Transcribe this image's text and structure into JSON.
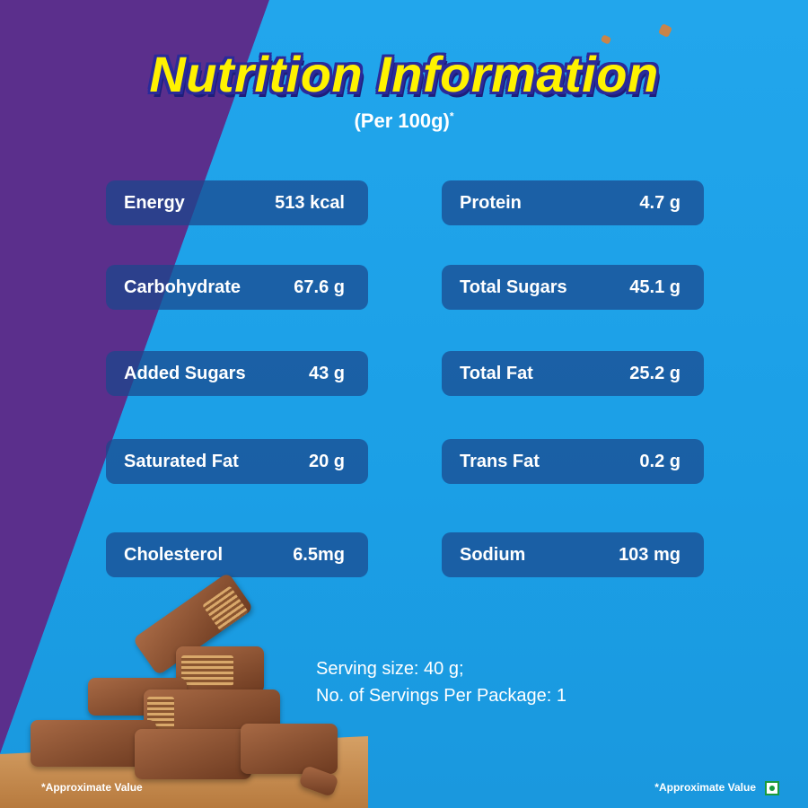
{
  "title": "Nutrition Information",
  "subtitle": "(Per 100g)",
  "subtitle_mark": "*",
  "nutrients_left": [
    {
      "name": "Energy",
      "value": "513 kcal"
    },
    {
      "name": "Carbohydrate",
      "value": "67.6 g"
    },
    {
      "name": "Added Sugars",
      "value": "43 g"
    },
    {
      "name": "Saturated Fat",
      "value": "20 g"
    },
    {
      "name": "Cholesterol",
      "value": "6.5mg"
    }
  ],
  "nutrients_right": [
    {
      "name": "Protein",
      "value": "4.7 g"
    },
    {
      "name": "Total Sugars",
      "value": "45.1 g"
    },
    {
      "name": "Total Fat",
      "value": "25.2 g"
    },
    {
      "name": "Trans Fat",
      "value": "0.2 g"
    },
    {
      "name": "Sodium",
      "value": "103 mg"
    }
  ],
  "serving": {
    "size": "Serving size: 40 g;",
    "per_package": "No. of Servings Per Package: 1"
  },
  "footnote_left": "*Approximate Value",
  "footnote_right": "*Approximate Value",
  "colors": {
    "purple_bg": "#5b2f8c",
    "blue_bg": "#1aa2e8",
    "title_yellow": "#fff200",
    "title_outline": "#2a2a9a",
    "pill_bg": "#1a468c",
    "veg_green": "#1b9a3c"
  },
  "icons": [
    "veg-mark-icon"
  ]
}
